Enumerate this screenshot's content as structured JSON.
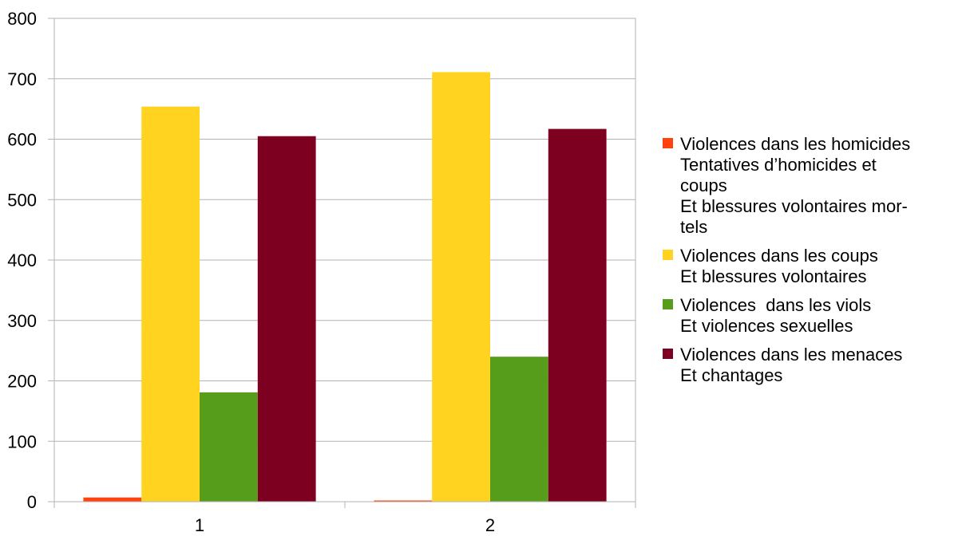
{
  "chart_data": {
    "type": "bar",
    "categories": [
      "1",
      "2"
    ],
    "ylim": [
      0,
      800
    ],
    "yticks": [
      0,
      100,
      200,
      300,
      400,
      500,
      600,
      700,
      800
    ],
    "grid": true,
    "legend_position": "right",
    "series": [
      {
        "name": "Violences dans les homicides\nTentatives d’homicides et coups\nEt blessures volontaires mortels",
        "label_lines": [
          "Violences dans les homicides",
          "Tentatives d’homicides et",
          "coups",
          "Et blessures volontaires mor-",
          "tels"
        ],
        "color": "#ff420e",
        "values": [
          7,
          2
        ]
      },
      {
        "name": "Violences dans les coups\nEt blessures volontaires",
        "label_lines": [
          "Violences dans les coups",
          "Et blessures volontaires"
        ],
        "color": "#ffd320",
        "values": [
          654,
          711
        ]
      },
      {
        "name": "Violences  dans les viols\nEt violences sexuelles",
        "label_lines": [
          "Violences  dans les viols",
          "Et violences sexuelles"
        ],
        "color": "#579d1c",
        "values": [
          181,
          240
        ]
      },
      {
        "name": "Violences dans les menaces\nEt chantages",
        "label_lines": [
          "Violences dans les menaces",
          "Et chantages"
        ],
        "color": "#7e0021",
        "values": [
          605,
          617
        ]
      }
    ]
  }
}
